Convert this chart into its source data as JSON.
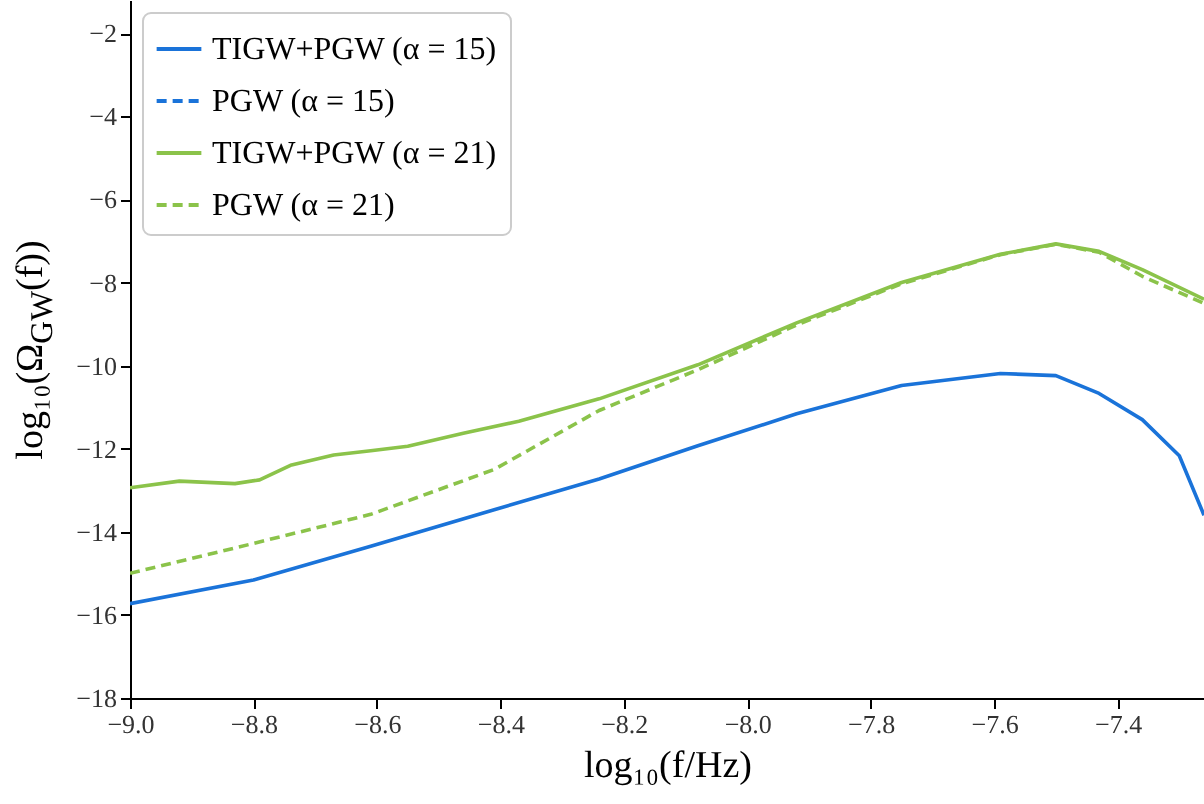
{
  "chart_data": {
    "type": "line",
    "xlabel": "log₁₀(f/Hz)",
    "ylabel": "log₁₀(Ω$_{GW}$(f))",
    "xlim": [
      -9.0,
      -7.26
    ],
    "ylim": [
      -18,
      -1.2
    ],
    "xticks": [
      {
        "value": -9.0,
        "label": "−9.0"
      },
      {
        "value": -8.8,
        "label": "−8.8"
      },
      {
        "value": -8.6,
        "label": "−8.6"
      },
      {
        "value": -8.4,
        "label": "−8.4"
      },
      {
        "value": -8.2,
        "label": "−8.2"
      },
      {
        "value": -8.0,
        "label": "−8.0"
      },
      {
        "value": -7.8,
        "label": "−7.8"
      },
      {
        "value": -7.6,
        "label": "−7.6"
      },
      {
        "value": -7.4,
        "label": "−7.4"
      }
    ],
    "yticks": [
      {
        "value": -18,
        "label": "−18"
      },
      {
        "value": -16,
        "label": "−16"
      },
      {
        "value": -14,
        "label": "−14"
      },
      {
        "value": -12,
        "label": "−12"
      },
      {
        "value": -10,
        "label": "−10"
      },
      {
        "value": -8,
        "label": "−8"
      },
      {
        "value": -6,
        "label": "−6"
      },
      {
        "value": -4,
        "label": "−4"
      },
      {
        "value": -2,
        "label": "−2"
      }
    ],
    "grid": false,
    "legend": "top left",
    "series": [
      {
        "name": "TIGW+PGW (α = 15)",
        "color": "#1a73d9",
        "line_style": "solid",
        "x": [
          -9.0,
          -8.8,
          -8.61,
          -8.41,
          -8.24,
          -8.08,
          -7.92,
          -7.75,
          -7.59,
          -7.5,
          -7.43,
          -7.36,
          -7.3,
          -7.26
        ],
        "values": [
          -15.73,
          -15.16,
          -14.35,
          -13.47,
          -12.73,
          -11.93,
          -11.16,
          -10.48,
          -10.19,
          -10.24,
          -10.67,
          -11.3,
          -12.17,
          -13.6
        ]
      },
      {
        "name": "PGW (α = 15)",
        "color": "#1a73d9",
        "line_style": "dashed"
      },
      {
        "name": "TIGW+PGW (α = 21)",
        "color": "#8bc34a",
        "line_style": "solid",
        "x": [
          -9.0,
          -8.92,
          -8.83,
          -8.79,
          -8.74,
          -8.67,
          -8.61,
          -8.55,
          -8.46,
          -8.37,
          -8.24,
          -8.08,
          -7.92,
          -7.75,
          -7.59,
          -7.5,
          -7.43,
          -7.36,
          -7.26
        ],
        "values": [
          -12.94,
          -12.78,
          -12.84,
          -12.75,
          -12.4,
          -12.15,
          -12.05,
          -11.94,
          -11.63,
          -11.34,
          -10.8,
          -9.98,
          -8.97,
          -8.0,
          -7.32,
          -7.07,
          -7.25,
          -7.69,
          -8.4
        ]
      },
      {
        "name": "PGW (α = 21)",
        "color": "#8bc34a",
        "line_style": "dashed",
        "x": [
          -9.0,
          -8.8,
          -8.61,
          -8.41,
          -8.24,
          -8.08,
          -7.92,
          -7.75,
          -7.59,
          -7.5,
          -7.43,
          -7.36,
          -7.26
        ],
        "values": [
          -15.0,
          -14.28,
          -13.58,
          -12.5,
          -11.08,
          -10.1,
          -9.02,
          -8.03,
          -7.33,
          -7.08,
          -7.27,
          -7.85,
          -8.5
        ]
      }
    ]
  }
}
